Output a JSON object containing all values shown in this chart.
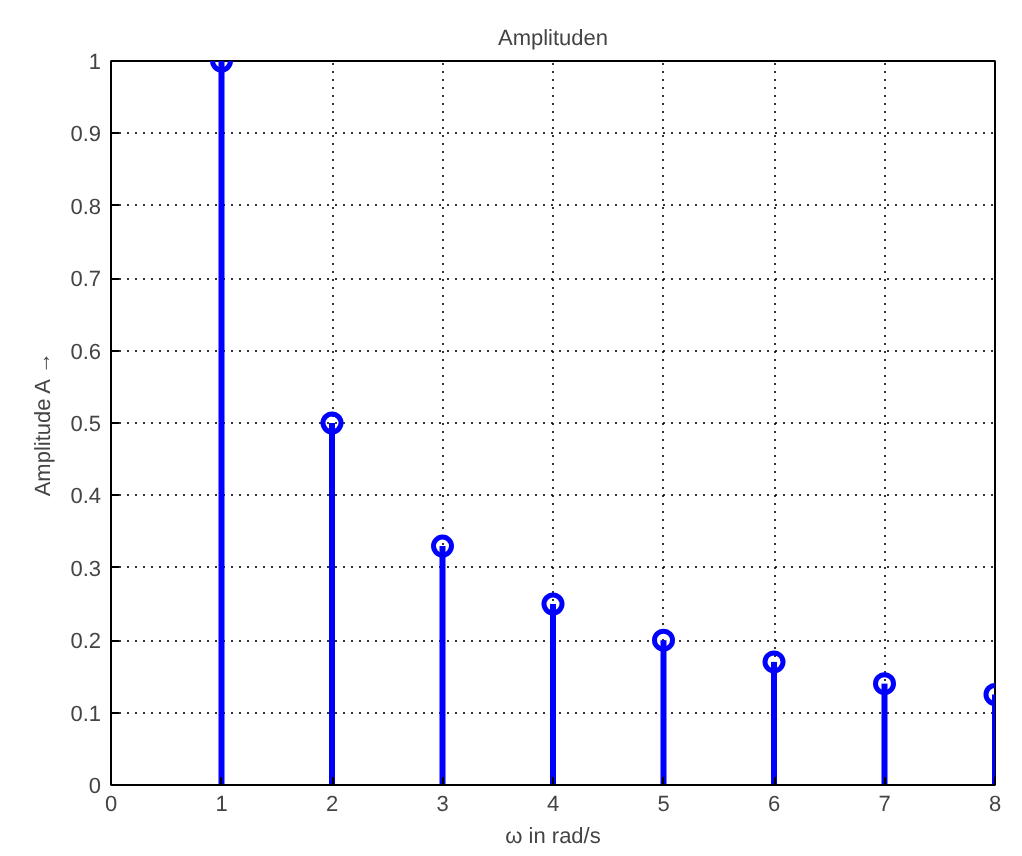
{
  "chart_data": {
    "type": "lollipop",
    "title": "Amplituden",
    "xlabel": "ω in rad/s",
    "ylabel": "Amplitude A →",
    "x": [
      1,
      2,
      3,
      4,
      5,
      6,
      7,
      8
    ],
    "series": [
      {
        "color": "#0000ff",
        "values": [
          1,
          0.5,
          0.33,
          0.25,
          0.2,
          0.17,
          0.14,
          0.125
        ]
      }
    ],
    "xlim": [
      0,
      8
    ],
    "ylim": [
      0,
      1
    ],
    "xticks": [
      0,
      1,
      2,
      3,
      4,
      5,
      6,
      7,
      8
    ],
    "yticks": [
      0,
      0.1,
      0.2,
      0.3,
      0.4,
      0.5,
      0.6,
      0.7,
      0.8,
      0.9,
      1
    ],
    "grid": true,
    "marker": "circle",
    "line_style": "solid"
  }
}
